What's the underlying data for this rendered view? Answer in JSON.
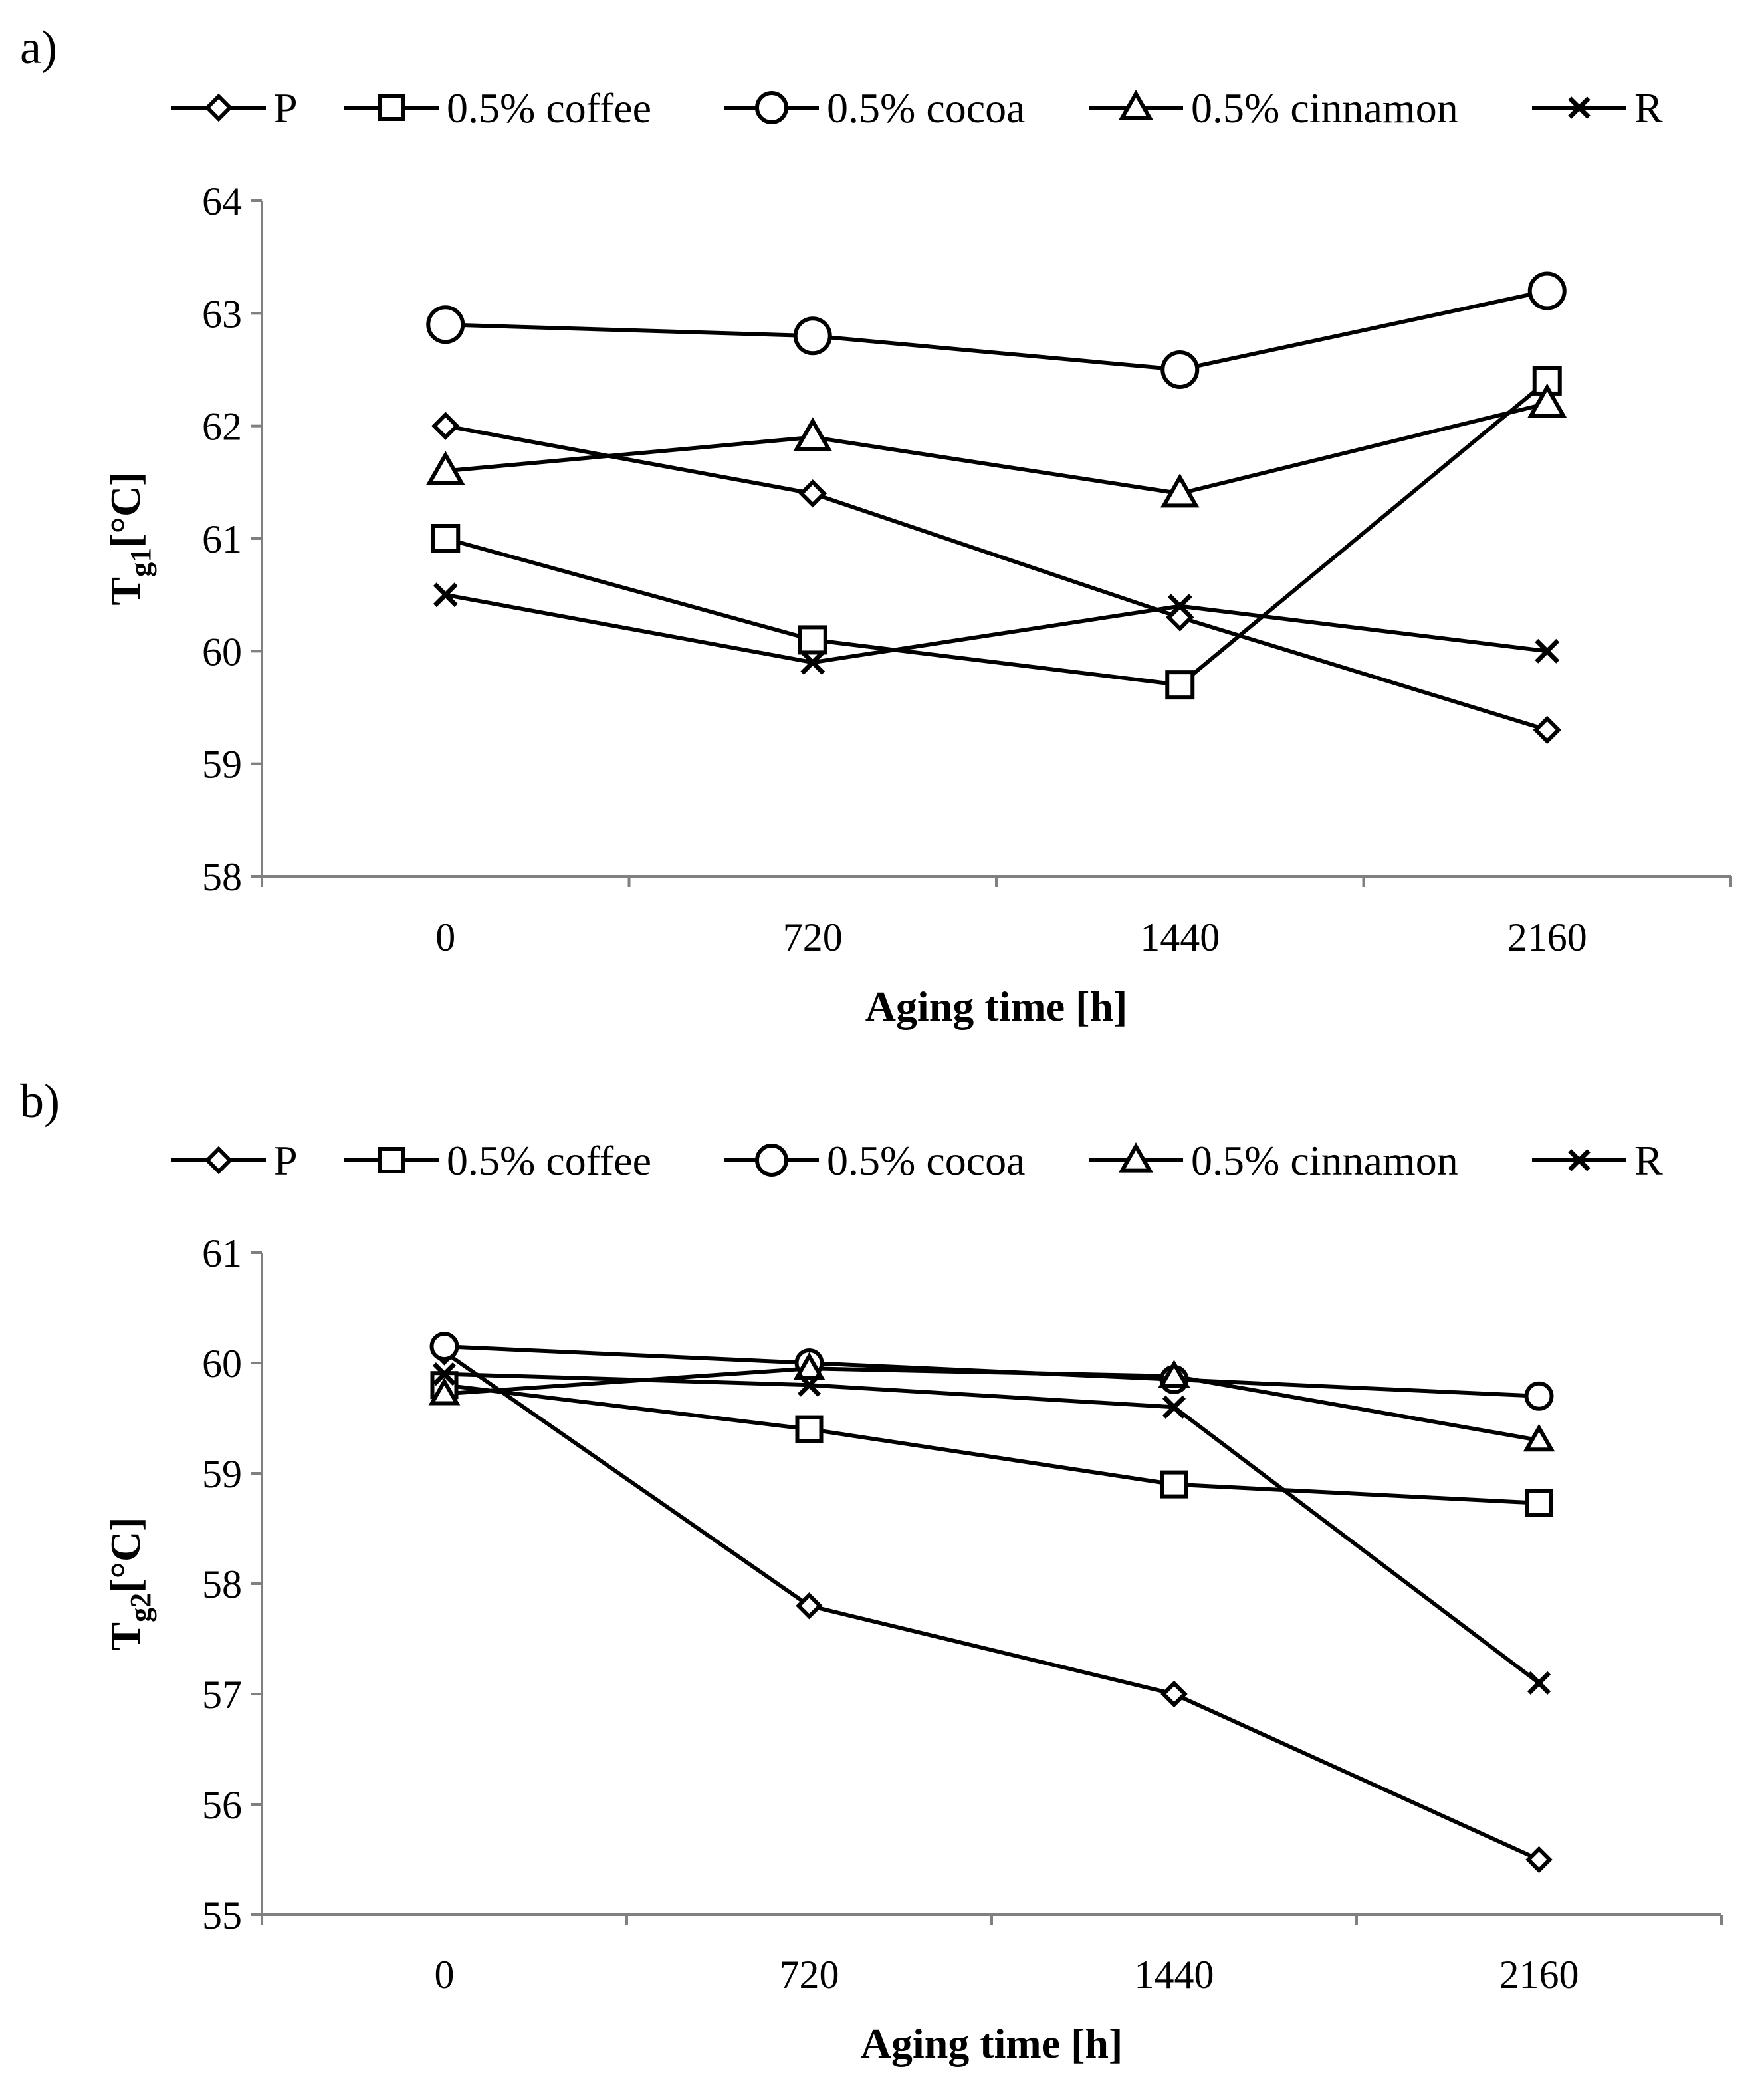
{
  "chart_data": [
    {
      "type": "line",
      "panel_label": "a)",
      "title": "",
      "xlabel": "Aging time [h]",
      "ylabel": {
        "main": "T",
        "sub": "g1",
        "unit": "[°C]"
      },
      "categories": [
        "0",
        "720",
        "1440",
        "2160"
      ],
      "ylim": [
        58,
        64
      ],
      "yticks": [
        58,
        59,
        60,
        61,
        62,
        63,
        64
      ],
      "grid": false,
      "legend_position": "top",
      "series": [
        {
          "name": "P",
          "marker": "diamond",
          "values": [
            62.0,
            61.4,
            60.3,
            59.3
          ]
        },
        {
          "name": "0.5% coffee",
          "marker": "square",
          "values": [
            61.0,
            60.1,
            59.7,
            62.4
          ]
        },
        {
          "name": "0.5% cocoa",
          "marker": "circle",
          "values": [
            62.9,
            62.8,
            62.5,
            63.2
          ]
        },
        {
          "name": "0.5% cinnamon",
          "marker": "triangle",
          "values": [
            61.6,
            61.9,
            61.4,
            62.2
          ]
        },
        {
          "name": "R",
          "marker": "x",
          "values": [
            60.5,
            59.9,
            60.4,
            60.0
          ]
        }
      ]
    },
    {
      "type": "line",
      "panel_label": "b)",
      "title": "",
      "xlabel": "Aging time [h]",
      "ylabel": {
        "main": "T",
        "sub": "g2",
        "unit": "[°C]"
      },
      "categories": [
        "0",
        "720",
        "1440",
        "2160"
      ],
      "ylim": [
        55,
        61
      ],
      "yticks": [
        55,
        56,
        57,
        58,
        59,
        60,
        61
      ],
      "grid": false,
      "legend_position": "top",
      "series": [
        {
          "name": "P",
          "marker": "diamond",
          "values": [
            60.1,
            57.8,
            57.0,
            55.5
          ]
        },
        {
          "name": "0.5% coffee",
          "marker": "square",
          "values": [
            59.8,
            59.4,
            58.9,
            58.73
          ]
        },
        {
          "name": "0.5% cocoa",
          "marker": "circle",
          "values": [
            60.15,
            60.0,
            59.85,
            59.7
          ]
        },
        {
          "name": "0.5% cinnamon",
          "marker": "triangle",
          "values": [
            59.72,
            59.95,
            59.88,
            59.3
          ]
        },
        {
          "name": "R",
          "marker": "x",
          "values": [
            59.9,
            59.8,
            59.6,
            57.1
          ]
        }
      ]
    }
  ]
}
